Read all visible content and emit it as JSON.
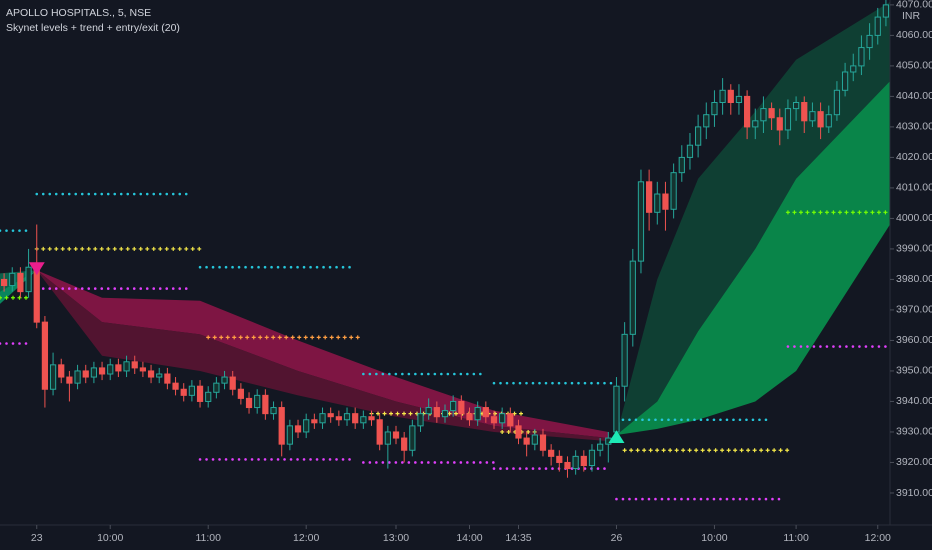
{
  "chart_data": {
    "type": "candlestick",
    "title": "APOLLO HOSPITALS., 5, NSE",
    "subtitle": "Skynet levels + trend + entry/exit (20)",
    "currency": "INR",
    "up_color": "#26a69a",
    "down_color": "#ef5350",
    "xlim": [
      -0.5,
      108.5
    ],
    "ylim": [
      3899.5,
      4071.6
    ],
    "yticks": [
      {
        "value": 3910,
        "label": "3910.00"
      },
      {
        "value": 3920,
        "label": "3920.00"
      },
      {
        "value": 3930,
        "label": "3930.00"
      },
      {
        "value": 3940,
        "label": "3940.00"
      },
      {
        "value": 3950,
        "label": "3950.00"
      },
      {
        "value": 3960,
        "label": "3960.00"
      },
      {
        "value": 3970,
        "label": "3970.00"
      },
      {
        "value": 3980,
        "label": "3980.00"
      },
      {
        "value": 3990,
        "label": "3990.00"
      },
      {
        "value": 4000,
        "label": "4000.00"
      },
      {
        "value": 4010,
        "label": "4010.00"
      },
      {
        "value": 4020,
        "label": "4020.00"
      },
      {
        "value": 4030,
        "label": "4030.00"
      },
      {
        "value": 4040,
        "label": "4040.00"
      },
      {
        "value": 4050,
        "label": "4050.00"
      },
      {
        "value": 4060,
        "label": "4060.00"
      },
      {
        "value": 4070,
        "label": "4070.00"
      }
    ],
    "xticks": [
      {
        "value": 4,
        "label": "23"
      },
      {
        "value": 13,
        "label": "10:00"
      },
      {
        "value": 25,
        "label": "11:00"
      },
      {
        "value": 37,
        "label": "12:00"
      },
      {
        "value": 48,
        "label": "13:00"
      },
      {
        "value": 57,
        "label": "14:00"
      },
      {
        "value": 63,
        "label": "14:35"
      },
      {
        "value": 75,
        "label": "26"
      },
      {
        "value": 87,
        "label": "10:00"
      },
      {
        "value": 97,
        "label": "11:00"
      },
      {
        "value": 107,
        "label": "12:00"
      }
    ],
    "x": [
      0,
      1,
      2,
      3,
      4,
      5,
      6,
      7,
      8,
      9,
      10,
      11,
      12,
      13,
      14,
      15,
      16,
      17,
      18,
      19,
      20,
      21,
      22,
      23,
      24,
      25,
      26,
      27,
      28,
      29,
      30,
      31,
      32,
      33,
      34,
      35,
      36,
      37,
      38,
      39,
      40,
      41,
      42,
      43,
      44,
      45,
      46,
      47,
      48,
      49,
      50,
      51,
      52,
      53,
      54,
      55,
      56,
      57,
      58,
      59,
      60,
      61,
      62,
      63,
      64,
      65,
      66,
      67,
      68,
      69,
      70,
      71,
      72,
      73,
      74,
      75,
      76,
      77,
      78,
      79,
      80,
      81,
      82,
      83,
      84,
      85,
      86,
      87,
      88,
      89,
      90,
      91,
      92,
      93,
      94,
      95,
      96,
      97,
      98,
      99,
      100,
      101,
      102,
      103,
      104,
      105,
      106,
      107,
      108
    ],
    "open": [
      3980,
      3978,
      3982,
      3976,
      3984,
      3966,
      3944,
      3952,
      3948,
      3946,
      3950,
      3948,
      3951,
      3949,
      3952,
      3950,
      3953,
      3951,
      3950,
      3948,
      3949,
      3946,
      3944,
      3942,
      3945,
      3940,
      3943,
      3946,
      3948,
      3944,
      3941,
      3938,
      3942,
      3936,
      3938,
      3926,
      3932,
      3930,
      3934,
      3933,
      3936,
      3935,
      3934,
      3936,
      3933,
      3935,
      3934,
      3926,
      3930,
      3928,
      3924,
      3932,
      3936,
      3938,
      3935,
      3937,
      3940,
      3936,
      3934,
      3938,
      3935,
      3933,
      3936,
      3932,
      3928,
      3926,
      3929,
      3924,
      3922,
      3920,
      3918,
      3922,
      3919,
      3924,
      3926,
      3930,
      3945,
      3962,
      3986,
      4012,
      4002,
      4008,
      4003,
      4015,
      4020,
      4024,
      4030,
      4034,
      4038,
      4042,
      4038,
      4040,
      4030,
      4032,
      4036,
      4033,
      4029,
      4036,
      4038,
      4032,
      4035,
      4030,
      4034,
      4042,
      4048,
      4050,
      4056,
      4060,
      4066
    ],
    "high": [
      3982,
      3984,
      3984,
      3990,
      3998,
      3968,
      3956,
      3954,
      3950,
      3952,
      3952,
      3953,
      3953,
      3954,
      3954,
      3955,
      3955,
      3953,
      3952,
      3951,
      3951,
      3948,
      3946,
      3947,
      3947,
      3945,
      3948,
      3950,
      3950,
      3946,
      3943,
      3944,
      3944,
      3940,
      3940,
      3934,
      3934,
      3936,
      3936,
      3938,
      3938,
      3937,
      3938,
      3938,
      3937,
      3937,
      3936,
      3932,
      3932,
      3930,
      3934,
      3938,
      3941,
      3940,
      3939,
      3942,
      3942,
      3938,
      3940,
      3940,
      3937,
      3938,
      3938,
      3934,
      3930,
      3931,
      3931,
      3926,
      3924,
      3922,
      3924,
      3924,
      3926,
      3928,
      3930,
      3948,
      3966,
      3990,
      4016,
      4016,
      4012,
      4012,
      4018,
      4024,
      4028,
      4034,
      4038,
      4042,
      4046,
      4044,
      4044,
      4042,
      4036,
      4040,
      4038,
      4036,
      4039,
      4040,
      4040,
      4038,
      4038,
      4037,
      4045,
      4051,
      4054,
      4060,
      4064,
      4069,
      4073
    ],
    "low": [
      3976,
      3976,
      3974,
      3974,
      3964,
      3938,
      3942,
      3946,
      3940,
      3944,
      3946,
      3946,
      3947,
      3947,
      3948,
      3948,
      3949,
      3948,
      3946,
      3946,
      3944,
      3942,
      3940,
      3940,
      3938,
      3938,
      3941,
      3944,
      3942,
      3939,
      3936,
      3936,
      3934,
      3934,
      3922,
      3924,
      3928,
      3928,
      3931,
      3931,
      3933,
      3932,
      3932,
      3931,
      3931,
      3932,
      3924,
      3918,
      3926,
      3920,
      3922,
      3930,
      3934,
      3933,
      3933,
      3935,
      3934,
      3932,
      3932,
      3933,
      3931,
      3931,
      3930,
      3926,
      3922,
      3924,
      3922,
      3919,
      3917,
      3915,
      3916,
      3917,
      3917,
      3922,
      3920,
      3928,
      3940,
      3958,
      3982,
      3996,
      3998,
      3996,
      4000,
      4012,
      4016,
      4020,
      4026,
      4030,
      4034,
      4034,
      4034,
      4026,
      4026,
      4028,
      4029,
      4024,
      4026,
      4032,
      4028,
      4030,
      4026,
      4028,
      4032,
      4040,
      4045,
      4047,
      4052,
      4057,
      4063
    ],
    "close": [
      3978,
      3982,
      3976,
      3984,
      3966,
      3944,
      3952,
      3948,
      3946,
      3950,
      3948,
      3951,
      3949,
      3952,
      3950,
      3953,
      3951,
      3950,
      3948,
      3949,
      3946,
      3944,
      3942,
      3945,
      3940,
      3943,
      3946,
      3948,
      3944,
      3941,
      3938,
      3942,
      3936,
      3938,
      3926,
      3932,
      3930,
      3934,
      3933,
      3936,
      3935,
      3934,
      3936,
      3933,
      3935,
      3934,
      3926,
      3930,
      3928,
      3924,
      3932,
      3936,
      3938,
      3935,
      3937,
      3940,
      3936,
      3934,
      3938,
      3935,
      3933,
      3936,
      3932,
      3928,
      3926,
      3929,
      3924,
      3922,
      3920,
      3918,
      3922,
      3919,
      3924,
      3926,
      3928,
      3945,
      3962,
      3986,
      4012,
      4002,
      4008,
      4003,
      4015,
      4020,
      4024,
      4030,
      4034,
      4038,
      4042,
      4038,
      4040,
      4030,
      4032,
      4036,
      4033,
      4029,
      4036,
      4038,
      4032,
      4035,
      4030,
      4034,
      4042,
      4048,
      4050,
      4056,
      4060,
      4066,
      4070
    ],
    "trend_bands": [
      {
        "outer_color": "#0b7a5a",
        "inner_color": "#089968",
        "x": [
          -0.5,
          4
        ],
        "top": [
          3982,
          3983
        ],
        "mid": [
          3976,
          3983
        ],
        "bottom": [
          3972,
          3983
        ]
      },
      {
        "outer_color": "#a3164f",
        "inner_color": "#5e1432",
        "x": [
          4,
          12,
          24,
          36,
          48,
          60,
          74
        ],
        "top": [
          3983,
          3974,
          3973,
          3960,
          3948,
          3937,
          3930
        ],
        "mid": [
          3983,
          3966,
          3962,
          3950,
          3940,
          3932,
          3928
        ],
        "bottom": [
          3983,
          3955,
          3950,
          3942,
          3935,
          3930,
          3927
        ]
      },
      {
        "outer_color": "#0f4d3a",
        "inner_color": "#089950",
        "x": [
          75,
          80,
          85,
          92,
          97,
          108.5
        ],
        "top": [
          3929,
          3980,
          4013,
          4035,
          4052,
          4071
        ],
        "mid": [
          3929,
          3940,
          3963,
          3990,
          4013,
          4045
        ],
        "bottom": [
          3929,
          3931,
          3934,
          3940,
          3950,
          3998
        ]
      }
    ],
    "levels": [
      {
        "value": 3996,
        "x": [
          -0.5,
          3
        ],
        "color": "#26c6da",
        "style": "dots"
      },
      {
        "value": 3974,
        "x": [
          -0.5,
          3
        ],
        "color": "#76ff03",
        "style": "cross"
      },
      {
        "value": 3959,
        "x": [
          -0.5,
          3
        ],
        "color": "#e040fb",
        "style": "dots"
      },
      {
        "value": 4008,
        "x": [
          4,
          23
        ],
        "color": "#26c6da",
        "style": "dots"
      },
      {
        "value": 3990,
        "x": [
          4,
          24
        ],
        "color": "#f5e94a",
        "style": "cross"
      },
      {
        "value": 3977,
        "x": [
          4,
          23
        ],
        "color": "#e040fb",
        "style": "dots"
      },
      {
        "value": 3984,
        "x": [
          24,
          43
        ],
        "color": "#26c6da",
        "style": "dots"
      },
      {
        "value": 3961,
        "x": [
          25,
          44
        ],
        "color": "#ff9f43",
        "style": "cross"
      },
      {
        "value": 3921,
        "x": [
          24,
          43
        ],
        "color": "#e040fb",
        "style": "dots"
      },
      {
        "value": 3949,
        "x": [
          44,
          59
        ],
        "color": "#26c6da",
        "style": "dots"
      },
      {
        "value": 3936,
        "x": [
          45,
          64
        ],
        "color": "#f5e94a",
        "style": "cross"
      },
      {
        "value": 3920,
        "x": [
          44,
          60
        ],
        "color": "#e040fb",
        "style": "dots"
      },
      {
        "value": 3946,
        "x": [
          60,
          75
        ],
        "color": "#26c6da",
        "style": "dots"
      },
      {
        "value": 3930,
        "x": [
          61,
          65
        ],
        "color": "#f5e94a",
        "style": "cross"
      },
      {
        "value": 3918,
        "x": [
          60,
          74
        ],
        "color": "#e040fb",
        "style": "dots"
      },
      {
        "value": 3934,
        "x": [
          75,
          94
        ],
        "color": "#26c6da",
        "style": "dots"
      },
      {
        "value": 3924,
        "x": [
          76,
          96
        ],
        "color": "#f5e94a",
        "style": "cross"
      },
      {
        "value": 3908,
        "x": [
          75,
          95
        ],
        "color": "#e040fb",
        "style": "dots"
      },
      {
        "value": 4002,
        "x": [
          96,
          108.5
        ],
        "color": "#76ff03",
        "style": "cross"
      },
      {
        "value": 3958,
        "x": [
          96,
          108.5
        ],
        "color": "#e040fb",
        "style": "dots"
      }
    ],
    "signals": [
      {
        "direction": "down",
        "x": 4,
        "value": 3983,
        "color": "#e91e8c"
      },
      {
        "direction": "up",
        "x": 75,
        "value": 3929,
        "color": "#1de9b6"
      }
    ]
  }
}
